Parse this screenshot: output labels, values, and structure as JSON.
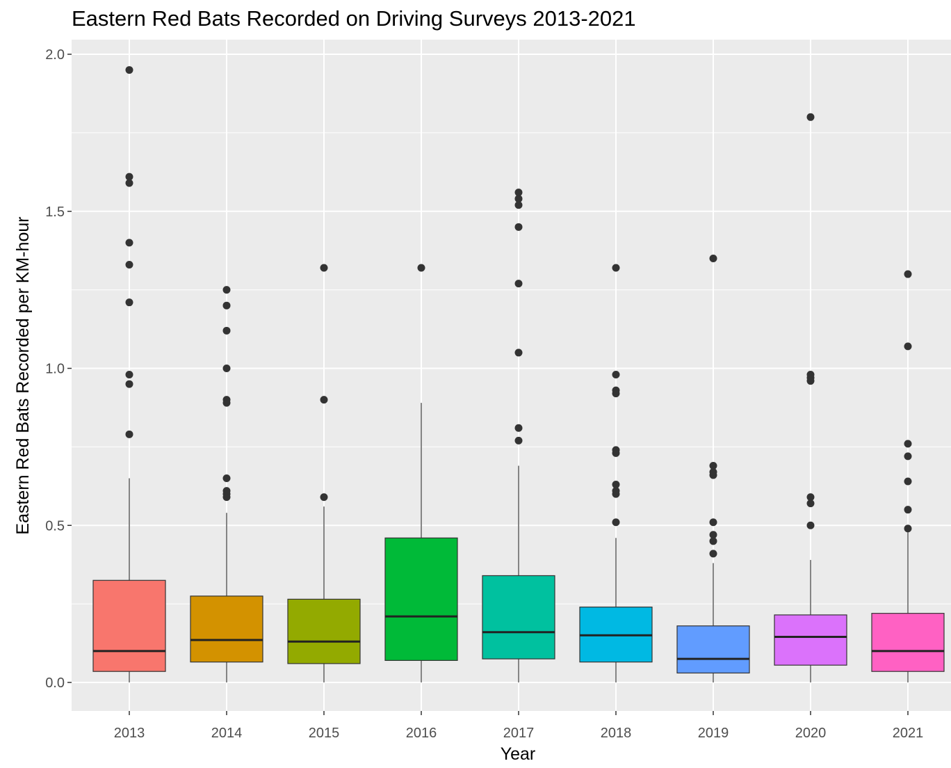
{
  "chart_data": {
    "type": "boxplot",
    "title": "Eastern Red Bats Recorded on Driving Surveys 2013-2021",
    "xlabel": "Year",
    "ylabel": "Eastern Red Bats Recorded per KM-hour",
    "ylim": [
      -0.09,
      2.04
    ],
    "yticks": [
      "0.0",
      "0.5",
      "1.0",
      "1.5",
      "2.0"
    ],
    "grid": true,
    "legend": "none",
    "categories": [
      "2013",
      "2014",
      "2015",
      "2016",
      "2017",
      "2018",
      "2019",
      "2020",
      "2021"
    ],
    "boxes": [
      {
        "category": "2013",
        "color": "#F8766D",
        "whisker_low": 0.0,
        "q1": 0.035,
        "median": 0.1,
        "q3": 0.325,
        "whisker_high": 0.65,
        "outliers": [
          0.79,
          0.95,
          0.98,
          1.21,
          1.33,
          1.4,
          1.59,
          1.61,
          1.95
        ]
      },
      {
        "category": "2014",
        "color": "#D39200",
        "whisker_low": 0.0,
        "q1": 0.065,
        "median": 0.135,
        "q3": 0.275,
        "whisker_high": 0.54,
        "outliers": [
          0.59,
          0.6,
          0.61,
          0.65,
          0.89,
          0.9,
          1.0,
          1.12,
          1.2,
          1.25
        ]
      },
      {
        "category": "2015",
        "color": "#93AA00",
        "whisker_low": 0.0,
        "q1": 0.06,
        "median": 0.13,
        "q3": 0.265,
        "whisker_high": 0.56,
        "outliers": [
          0.59,
          0.9,
          1.32
        ]
      },
      {
        "category": "2016",
        "color": "#00BA38",
        "whisker_low": 0.0,
        "q1": 0.07,
        "median": 0.21,
        "q3": 0.46,
        "whisker_high": 0.89,
        "outliers": [
          1.32
        ]
      },
      {
        "category": "2017",
        "color": "#00C19F",
        "whisker_low": 0.0,
        "q1": 0.075,
        "median": 0.16,
        "q3": 0.34,
        "whisker_high": 0.69,
        "outliers": [
          0.77,
          0.81,
          1.05,
          1.27,
          1.45,
          1.52,
          1.54,
          1.56
        ]
      },
      {
        "category": "2018",
        "color": "#00B9E3",
        "whisker_low": 0.0,
        "q1": 0.065,
        "median": 0.15,
        "q3": 0.24,
        "whisker_high": 0.46,
        "outliers": [
          0.51,
          0.6,
          0.61,
          0.63,
          0.73,
          0.74,
          0.92,
          0.93,
          0.98,
          1.32
        ]
      },
      {
        "category": "2019",
        "color": "#619CFF",
        "whisker_low": 0.0,
        "q1": 0.03,
        "median": 0.075,
        "q3": 0.18,
        "whisker_high": 0.38,
        "outliers": [
          0.41,
          0.45,
          0.47,
          0.51,
          0.66,
          0.67,
          0.69,
          1.35
        ]
      },
      {
        "category": "2020",
        "color": "#DB72FB",
        "whisker_low": 0.0,
        "q1": 0.055,
        "median": 0.145,
        "q3": 0.215,
        "whisker_high": 0.39,
        "outliers": [
          0.5,
          0.57,
          0.59,
          0.96,
          0.97,
          0.98,
          1.8
        ]
      },
      {
        "category": "2021",
        "color": "#FF61C3",
        "whisker_low": 0.0,
        "q1": 0.035,
        "median": 0.1,
        "q3": 0.22,
        "whisker_high": 0.49,
        "outliers": [
          0.49,
          0.55,
          0.64,
          0.72,
          0.76,
          1.07,
          1.3
        ]
      }
    ]
  }
}
